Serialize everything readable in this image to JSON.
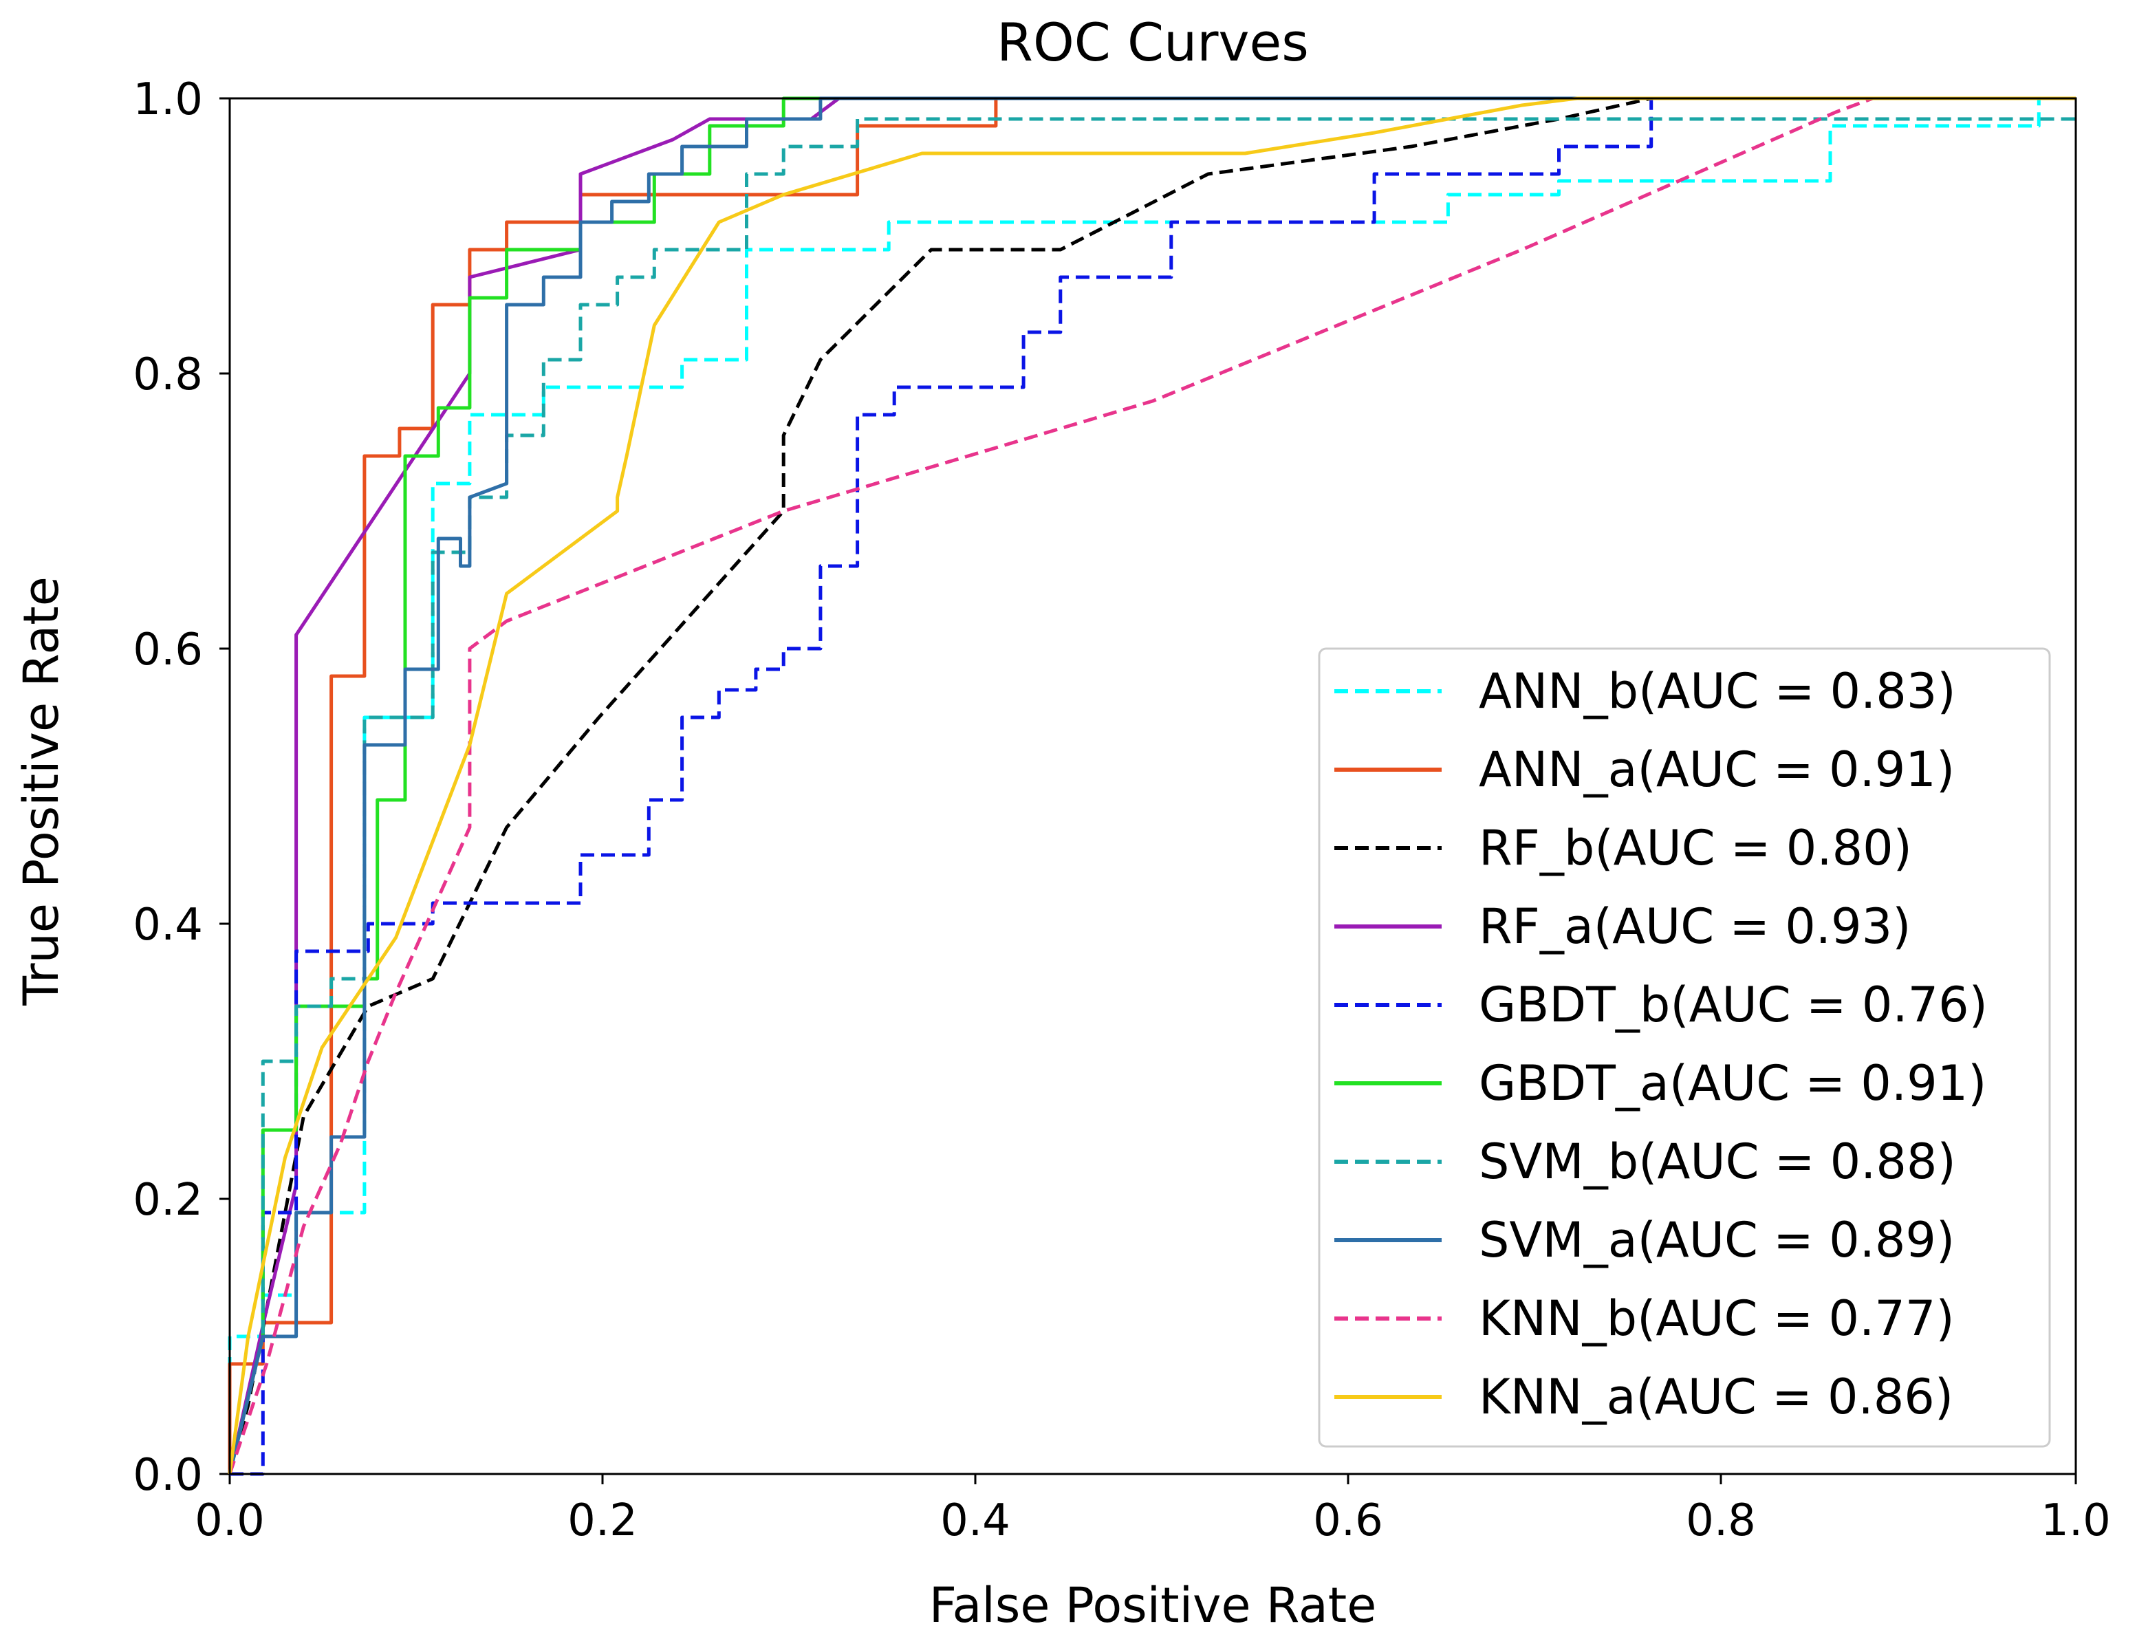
{
  "chart_data": {
    "type": "line",
    "title": "ROC Curves",
    "xlabel": "False Positive Rate",
    "ylabel": "True Positive Rate",
    "xlim": [
      0,
      1
    ],
    "ylim": [
      0,
      1
    ],
    "xticks": [
      "0.0",
      "0.2",
      "0.4",
      "0.6",
      "0.8",
      "1.0"
    ],
    "yticks": [
      "0.0",
      "0.2",
      "0.4",
      "0.6",
      "0.8",
      "1.0"
    ],
    "grid": false,
    "legend_position": "lower-right",
    "series": [
      {
        "name": "ANN_b(AUC = 0.83)",
        "color": "#00ffff",
        "dash": "dashed",
        "points": [
          [
            0,
            0
          ],
          [
            0,
            0.1
          ],
          [
            0.018,
            0.1
          ],
          [
            0.018,
            0.13
          ],
          [
            0.036,
            0.13
          ],
          [
            0.036,
            0.19
          ],
          [
            0.073,
            0.19
          ],
          [
            0.073,
            0.55
          ],
          [
            0.11,
            0.55
          ],
          [
            0.11,
            0.72
          ],
          [
            0.13,
            0.72
          ],
          [
            0.13,
            0.77
          ],
          [
            0.17,
            0.77
          ],
          [
            0.17,
            0.79
          ],
          [
            0.245,
            0.79
          ],
          [
            0.245,
            0.81
          ],
          [
            0.28,
            0.81
          ],
          [
            0.28,
            0.89
          ],
          [
            0.357,
            0.89
          ],
          [
            0.357,
            0.91
          ],
          [
            0.66,
            0.91
          ],
          [
            0.66,
            0.93
          ],
          [
            0.72,
            0.93
          ],
          [
            0.72,
            0.94
          ],
          [
            0.867,
            0.94
          ],
          [
            0.867,
            0.98
          ],
          [
            0.98,
            0.98
          ],
          [
            0.98,
            1.0
          ],
          [
            1.0,
            1.0
          ]
        ]
      },
      {
        "name": "ANN_a(AUC = 0.91)",
        "color": "#e8501e",
        "dash": "solid",
        "points": [
          [
            0,
            0
          ],
          [
            0,
            0.08
          ],
          [
            0.018,
            0.08
          ],
          [
            0.018,
            0.11
          ],
          [
            0.055,
            0.11
          ],
          [
            0.055,
            0.58
          ],
          [
            0.073,
            0.58
          ],
          [
            0.073,
            0.74
          ],
          [
            0.092,
            0.74
          ],
          [
            0.092,
            0.76
          ],
          [
            0.11,
            0.76
          ],
          [
            0.11,
            0.85
          ],
          [
            0.13,
            0.85
          ],
          [
            0.13,
            0.89
          ],
          [
            0.15,
            0.89
          ],
          [
            0.15,
            0.91
          ],
          [
            0.19,
            0.91
          ],
          [
            0.19,
            0.93
          ],
          [
            0.34,
            0.93
          ],
          [
            0.34,
            0.98
          ],
          [
            0.415,
            0.98
          ],
          [
            0.415,
            1.0
          ],
          [
            1.0,
            1.0
          ]
        ]
      },
      {
        "name": "RF_b(AUC = 0.80)",
        "color": "#000000",
        "dash": "dashed",
        "points": [
          [
            0,
            0
          ],
          [
            0.01,
            0.05
          ],
          [
            0.02,
            0.12
          ],
          [
            0.04,
            0.26
          ],
          [
            0.075,
            0.34
          ],
          [
            0.11,
            0.36
          ],
          [
            0.15,
            0.47
          ],
          [
            0.2,
            0.55
          ],
          [
            0.3,
            0.7
          ],
          [
            0.3,
            0.755
          ],
          [
            0.32,
            0.81
          ],
          [
            0.38,
            0.89
          ],
          [
            0.45,
            0.89
          ],
          [
            0.53,
            0.945
          ],
          [
            0.64,
            0.965
          ],
          [
            0.72,
            0.985
          ],
          [
            0.77,
            1.0
          ],
          [
            1.0,
            1.0
          ]
        ]
      },
      {
        "name": "RF_a(AUC = 0.93)",
        "color": "#9a1bb5",
        "dash": "solid",
        "points": [
          [
            0,
            0
          ],
          [
            0.02,
            0.12
          ],
          [
            0.036,
            0.21
          ],
          [
            0.036,
            0.61
          ],
          [
            0.13,
            0.8
          ],
          [
            0.13,
            0.87
          ],
          [
            0.19,
            0.89
          ],
          [
            0.19,
            0.945
          ],
          [
            0.24,
            0.97
          ],
          [
            0.26,
            0.985
          ],
          [
            0.315,
            0.985
          ],
          [
            0.33,
            1.0
          ],
          [
            1.0,
            1.0
          ]
        ]
      },
      {
        "name": "GBDT_b(AUC = 0.76)",
        "color": "#0a14e6",
        "dash": "dashed",
        "points": [
          [
            0,
            0
          ],
          [
            0.018,
            0
          ],
          [
            0.018,
            0.19
          ],
          [
            0.036,
            0.19
          ],
          [
            0.036,
            0.38
          ],
          [
            0.075,
            0.38
          ],
          [
            0.075,
            0.4
          ],
          [
            0.11,
            0.4
          ],
          [
            0.11,
            0.415
          ],
          [
            0.19,
            0.415
          ],
          [
            0.19,
            0.45
          ],
          [
            0.227,
            0.45
          ],
          [
            0.227,
            0.49
          ],
          [
            0.245,
            0.49
          ],
          [
            0.245,
            0.55
          ],
          [
            0.265,
            0.55
          ],
          [
            0.265,
            0.57
          ],
          [
            0.285,
            0.57
          ],
          [
            0.285,
            0.585
          ],
          [
            0.3,
            0.585
          ],
          [
            0.3,
            0.6
          ],
          [
            0.32,
            0.6
          ],
          [
            0.32,
            0.66
          ],
          [
            0.34,
            0.66
          ],
          [
            0.34,
            0.77
          ],
          [
            0.36,
            0.77
          ],
          [
            0.36,
            0.79
          ],
          [
            0.43,
            0.79
          ],
          [
            0.43,
            0.83
          ],
          [
            0.45,
            0.83
          ],
          [
            0.45,
            0.87
          ],
          [
            0.51,
            0.87
          ],
          [
            0.51,
            0.91
          ],
          [
            0.62,
            0.91
          ],
          [
            0.62,
            0.945
          ],
          [
            0.72,
            0.945
          ],
          [
            0.72,
            0.965
          ],
          [
            0.77,
            0.965
          ],
          [
            0.77,
            1.0
          ],
          [
            1.0,
            1.0
          ]
        ]
      },
      {
        "name": "GBDT_a(AUC = 0.91)",
        "color": "#22e122",
        "dash": "solid",
        "points": [
          [
            0,
            0
          ],
          [
            0.018,
            0.1
          ],
          [
            0.018,
            0.25
          ],
          [
            0.036,
            0.25
          ],
          [
            0.036,
            0.34
          ],
          [
            0.073,
            0.34
          ],
          [
            0.073,
            0.36
          ],
          [
            0.08,
            0.36
          ],
          [
            0.08,
            0.49
          ],
          [
            0.095,
            0.49
          ],
          [
            0.095,
            0.74
          ],
          [
            0.113,
            0.74
          ],
          [
            0.113,
            0.775
          ],
          [
            0.13,
            0.775
          ],
          [
            0.13,
            0.855
          ],
          [
            0.15,
            0.855
          ],
          [
            0.15,
            0.89
          ],
          [
            0.19,
            0.89
          ],
          [
            0.19,
            0.91
          ],
          [
            0.23,
            0.91
          ],
          [
            0.23,
            0.945
          ],
          [
            0.26,
            0.945
          ],
          [
            0.26,
            0.98
          ],
          [
            0.3,
            0.98
          ],
          [
            0.3,
            1.0
          ],
          [
            1.0,
            1.0
          ]
        ]
      },
      {
        "name": "SVM_b(AUC = 0.88)",
        "color": "#1aa6a6",
        "dash": "dashed",
        "points": [
          [
            0,
            0
          ],
          [
            0.018,
            0.1
          ],
          [
            0.018,
            0.3
          ],
          [
            0.036,
            0.3
          ],
          [
            0.036,
            0.34
          ],
          [
            0.055,
            0.34
          ],
          [
            0.055,
            0.36
          ],
          [
            0.073,
            0.36
          ],
          [
            0.073,
            0.55
          ],
          [
            0.11,
            0.55
          ],
          [
            0.11,
            0.67
          ],
          [
            0.13,
            0.67
          ],
          [
            0.13,
            0.71
          ],
          [
            0.15,
            0.71
          ],
          [
            0.15,
            0.755
          ],
          [
            0.17,
            0.755
          ],
          [
            0.17,
            0.81
          ],
          [
            0.19,
            0.81
          ],
          [
            0.19,
            0.85
          ],
          [
            0.21,
            0.85
          ],
          [
            0.21,
            0.87
          ],
          [
            0.23,
            0.87
          ],
          [
            0.23,
            0.89
          ],
          [
            0.28,
            0.89
          ],
          [
            0.28,
            0.945
          ],
          [
            0.3,
            0.945
          ],
          [
            0.3,
            0.965
          ],
          [
            0.34,
            0.965
          ],
          [
            0.34,
            0.985
          ],
          [
            1.0,
            0.985
          ]
        ]
      },
      {
        "name": "SVM_a(AUC = 0.89)",
        "color": "#2e6fa8",
        "dash": "solid",
        "points": [
          [
            0,
            0
          ],
          [
            0.018,
            0.1
          ],
          [
            0.036,
            0.1
          ],
          [
            0.036,
            0.19
          ],
          [
            0.055,
            0.19
          ],
          [
            0.055,
            0.245
          ],
          [
            0.073,
            0.245
          ],
          [
            0.073,
            0.53
          ],
          [
            0.095,
            0.53
          ],
          [
            0.095,
            0.585
          ],
          [
            0.113,
            0.585
          ],
          [
            0.113,
            0.66
          ],
          [
            0.113,
            0.68
          ],
          [
            0.125,
            0.68
          ],
          [
            0.125,
            0.66
          ],
          [
            0.13,
            0.66
          ],
          [
            0.13,
            0.71
          ],
          [
            0.15,
            0.72
          ],
          [
            0.15,
            0.85
          ],
          [
            0.17,
            0.85
          ],
          [
            0.17,
            0.87
          ],
          [
            0.19,
            0.87
          ],
          [
            0.19,
            0.91
          ],
          [
            0.207,
            0.91
          ],
          [
            0.207,
            0.925
          ],
          [
            0.227,
            0.925
          ],
          [
            0.227,
            0.945
          ],
          [
            0.245,
            0.945
          ],
          [
            0.245,
            0.965
          ],
          [
            0.28,
            0.965
          ],
          [
            0.28,
            0.985
          ],
          [
            0.32,
            0.985
          ],
          [
            0.32,
            1.0
          ],
          [
            1.0,
            1.0
          ]
        ]
      },
      {
        "name": "KNN_b(AUC = 0.77)",
        "color": "#e8348c",
        "dash": "dashed",
        "points": [
          [
            0,
            0
          ],
          [
            0.02,
            0.08
          ],
          [
            0.04,
            0.18
          ],
          [
            0.06,
            0.24
          ],
          [
            0.075,
            0.3
          ],
          [
            0.09,
            0.35
          ],
          [
            0.13,
            0.47
          ],
          [
            0.13,
            0.6
          ],
          [
            0.15,
            0.62
          ],
          [
            0.3,
            0.7
          ],
          [
            0.5,
            0.78
          ],
          [
            0.7,
            0.89
          ],
          [
            0.87,
            0.99
          ],
          [
            0.89,
            1.0
          ],
          [
            1.0,
            1.0
          ]
        ]
      },
      {
        "name": "KNN_a(AUC = 0.86)",
        "color": "#f7ca18",
        "dash": "solid",
        "points": [
          [
            0,
            0
          ],
          [
            0.01,
            0.1
          ],
          [
            0.03,
            0.23
          ],
          [
            0.05,
            0.31
          ],
          [
            0.09,
            0.39
          ],
          [
            0.13,
            0.53
          ],
          [
            0.15,
            0.64
          ],
          [
            0.21,
            0.7
          ],
          [
            0.21,
            0.71
          ],
          [
            0.215,
            0.74
          ],
          [
            0.23,
            0.835
          ],
          [
            0.265,
            0.91
          ],
          [
            0.3,
            0.93
          ],
          [
            0.375,
            0.96
          ],
          [
            0.55,
            0.96
          ],
          [
            0.62,
            0.975
          ],
          [
            0.7,
            0.995
          ],
          [
            0.73,
            1.0
          ],
          [
            1.0,
            1.0
          ]
        ]
      }
    ]
  }
}
